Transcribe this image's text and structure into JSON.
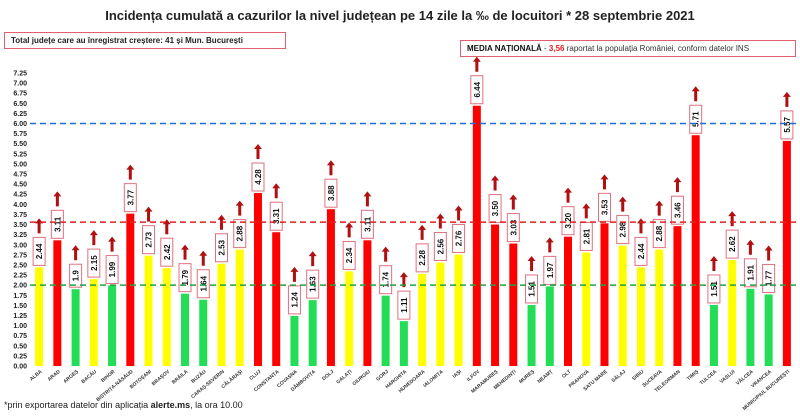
{
  "chart_data": {
    "type": "bar",
    "title": "Incidența cumulată a cazurilor la nivel județean pe 14 zile la ‰ de locuitori * 28 septembrie 2021",
    "categories": [
      "ALBA",
      "ARAD",
      "ARGEȘ",
      "BACĂU",
      "BIHOR",
      "BISTRIȚA-NĂSĂUD",
      "BOTOȘANI",
      "BRAȘOV",
      "BRĂILA",
      "BUZĂU",
      "CARAȘ-SEVERIN",
      "CĂLĂRAȘI",
      "CLUJ",
      "CONSTANȚA",
      "COVASNA",
      "DÂMBOVIȚA",
      "DOLJ",
      "GALAȚI",
      "GIURGIU",
      "GORJ",
      "HARGHITA",
      "HUNEDOARA",
      "IALOMIȚA",
      "IAȘI",
      "ILFOV",
      "MARAMUREȘ",
      "MEHEDINȚI",
      "MUREȘ",
      "NEAMȚ",
      "OLT",
      "PRAHOVA",
      "SATU MARE",
      "SĂLAJ",
      "SIBIU",
      "SUCEAVA",
      "TELEORMAN",
      "TIMIȘ",
      "TULCEA",
      "VASLUI",
      "VÂLCEA",
      "VRANCEA",
      "MUNICIPIUL BUCUREȘTI"
    ],
    "values": [
      2.44,
      3.11,
      1.9,
      2.15,
      1.99,
      3.77,
      2.73,
      2.42,
      1.79,
      1.64,
      2.53,
      2.88,
      4.28,
      3.31,
      1.24,
      1.63,
      3.88,
      2.34,
      3.11,
      1.74,
      1.11,
      2.28,
      2.56,
      2.76,
      6.44,
      3.5,
      3.03,
      1.51,
      1.97,
      3.2,
      2.81,
      3.53,
      2.98,
      2.44,
      2.88,
      3.46,
      5.71,
      1.51,
      2.62,
      1.91,
      1.77,
      5.57
    ],
    "value_labels": [
      "2.44",
      "3.11",
      "1.9",
      "2.15",
      "1.99",
      "3.77",
      "2.73",
      "2.42",
      "1.79",
      "1.64",
      "2.53",
      "2.88",
      "4.28",
      "3.31",
      "1.24",
      "1.63",
      "3.88",
      "2.34",
      "3.11",
      "1.74",
      "1.11",
      "2.28",
      "2.56",
      "2.76",
      "6.44",
      "3.50",
      "3.03",
      "1.51",
      "1.97",
      "3.20",
      "2.81",
      "3.53",
      "2.98",
      "2.44",
      "2.88",
      "3.46",
      "5.71",
      "1.51",
      "2.62",
      "1.91",
      "1.77",
      "5.57"
    ],
    "ylim": [
      0,
      7.25
    ],
    "ytick_step": 0.25,
    "reference_lines": [
      {
        "value": 6.0,
        "color": "#1f6fd0",
        "style": "dashed"
      },
      {
        "value": 3.56,
        "color": "#e02020",
        "style": "dashed"
      },
      {
        "value": 2.0,
        "color": "#20a040",
        "style": "dashed"
      }
    ],
    "color_rules": {
      "high": "#ff0000",
      "medium": "#ffff00",
      "low": "#22dd55"
    },
    "trend_marker": "up-arrow",
    "trend_color": "#b01010",
    "grid": false,
    "legend": "none"
  },
  "header": {
    "title": "Incidența cumulată a cazurilor la nivel județean pe 14 zile la ‰ de locuitori * 28 septembrie 2021",
    "increase_box": "Total județe care au înregistrat creștere:  41 și Mun. București",
    "national_label": "MEDIA NAȚIONALĂ",
    "national_sep": " - ",
    "national_value": "3,56",
    "national_rest": " raportat la populația României, conform datelor INS"
  },
  "footer": {
    "prefix": "*prin exportarea datelor din aplicația ",
    "app": "alerte.ms",
    "suffix": ", la ora 10.00"
  }
}
